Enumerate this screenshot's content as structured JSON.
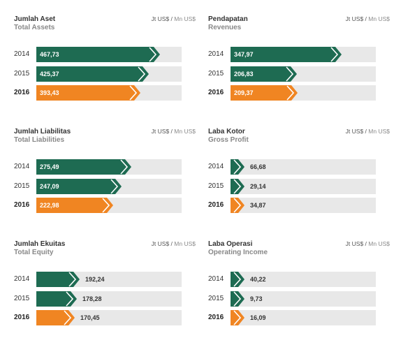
{
  "colors": {
    "prior": "#1e6b52",
    "current": "#f08522",
    "track": "#e8e8e8"
  },
  "units": [
    "Jt US$",
    "Mn US$"
  ],
  "chart_data": [
    {
      "type": "bar",
      "title": "Jumlah Aset",
      "subtitle": "Total Assets",
      "categories": [
        "2014",
        "2015",
        "2016"
      ],
      "values": [
        467.73,
        425.37,
        393.43
      ],
      "value_labels": [
        "467,73",
        "425,37",
        "393,43"
      ],
      "max": 550
    },
    {
      "type": "bar",
      "title": "Pendapatan",
      "subtitle": "Revenues",
      "categories": [
        "2014",
        "2015",
        "2016"
      ],
      "values": [
        347.97,
        206.83,
        209.37
      ],
      "value_labels": [
        "347,97",
        "206,83",
        "209,37"
      ],
      "max": 455
    },
    {
      "type": "bar",
      "title": "Jumlah Liabilitas",
      "subtitle": "Total Liabilities",
      "categories": [
        "2014",
        "2015",
        "2016"
      ],
      "values": [
        275.49,
        247.09,
        222.98
      ],
      "value_labels": [
        "275,49",
        "247,09",
        "222,98"
      ],
      "max": 420
    },
    {
      "type": "bar",
      "title": "Laba Kotor",
      "subtitle": "Gross Profit",
      "categories": [
        "2014",
        "2015",
        "2016"
      ],
      "values": [
        66.68,
        29.14,
        34.87
      ],
      "value_labels": [
        "66,68",
        "29,14",
        "34,87"
      ],
      "max": 700
    },
    {
      "type": "bar",
      "title": "Jumlah Ekuitas",
      "subtitle": "Total Equity",
      "categories": [
        "2014",
        "2015",
        "2016"
      ],
      "values": [
        192.24,
        178.28,
        170.45
      ],
      "value_labels": [
        "192,24",
        "178,28",
        "170,45"
      ],
      "max": 640
    },
    {
      "type": "bar",
      "title": "Laba Operasi",
      "subtitle": "Operating Income",
      "categories": [
        "2014",
        "2015",
        "2016"
      ],
      "values": [
        40.22,
        9.73,
        16.09
      ],
      "value_labels": [
        "40,22",
        "9,73",
        "16,09"
      ],
      "max": 440
    }
  ]
}
